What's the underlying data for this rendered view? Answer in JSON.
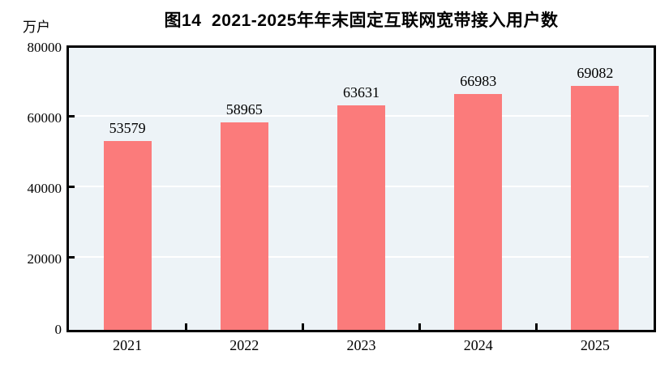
{
  "header": {
    "title": "图14  2021-2025年年末固定互联网宽带接入用户数",
    "unit_label": "万户"
  },
  "chart_data": {
    "type": "bar",
    "title": "图14  2021-2025年年末固定互联网宽带接入用户数",
    "ylabel": "万户",
    "xlabel": "",
    "categories": [
      "2021",
      "2022",
      "2023",
      "2024",
      "2025"
    ],
    "values": [
      53579,
      58965,
      63631,
      66983,
      69082
    ],
    "data_labels": [
      "53579",
      "58965",
      "63631",
      "66983",
      "69082"
    ],
    "ylim": [
      0,
      80000
    ],
    "yticks": [
      0,
      20000,
      40000,
      60000,
      80000
    ],
    "ytick_labels": [
      "0",
      "20000",
      "40000",
      "60000",
      "80000"
    ],
    "grid": true,
    "legend": "none",
    "colors": {
      "bar": "#fb7b7b",
      "plot_background": "#edf3f7",
      "gridline": "#ffffff",
      "axis": "#000000",
      "text": "#000000"
    }
  }
}
